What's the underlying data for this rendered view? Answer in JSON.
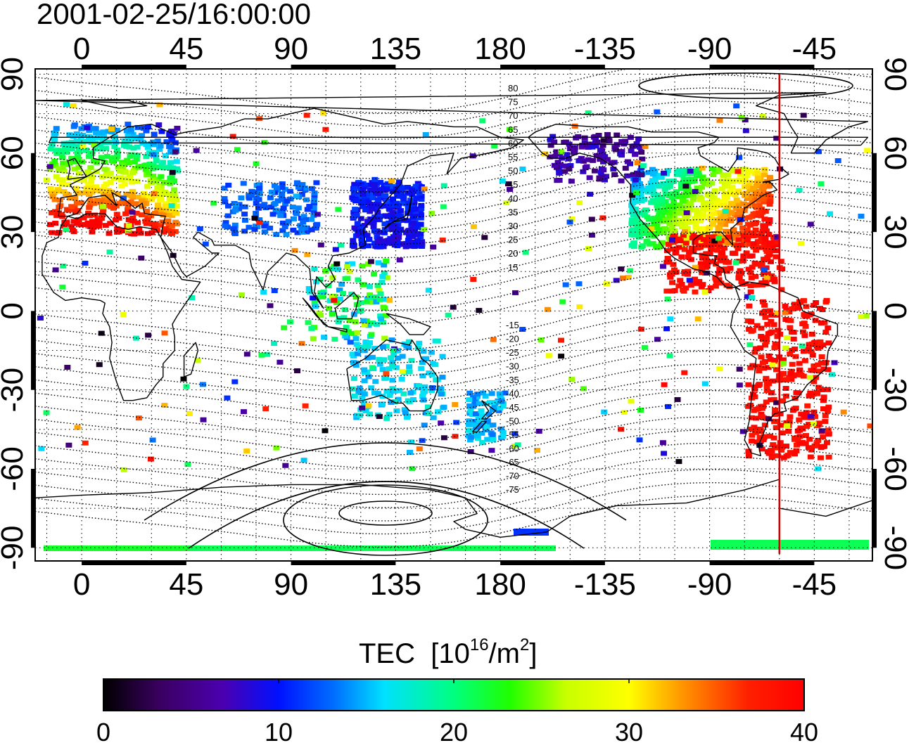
{
  "title": "2001-02-25/16:00:00",
  "map": {
    "top_lon_ticks": [
      "0",
      "45",
      "90",
      "135",
      "180",
      "-135",
      "-90",
      "-45"
    ],
    "bottom_lon_ticks": [
      "0",
      "45",
      "90",
      "135",
      "180",
      "-135",
      "-90",
      "-45"
    ],
    "left_lat_ticks": [
      "90",
      "60",
      "30",
      "0",
      "-30",
      "-60",
      "-90"
    ],
    "right_lat_ticks": [
      "90",
      "60",
      "30",
      "0",
      "-30",
      "-60",
      "-90"
    ],
    "lon_range": [
      -20,
      340
    ],
    "lat_range": [
      -95,
      92
    ],
    "grid": true,
    "grid_style": "dotted",
    "terminator_line_color": "#d00000",
    "terminator_lon": -60,
    "magnetic_contour_labels_north": [
      "80",
      "75",
      "70",
      "65",
      "60",
      "55",
      "50",
      "45",
      "40",
      "35",
      "30",
      "25",
      "20",
      "15"
    ],
    "magnetic_contour_labels_south": [
      "-15",
      "-20",
      "-25",
      "-30",
      "-35",
      "-40",
      "-45",
      "-50",
      "-55",
      "-60",
      "-65",
      "-70",
      "-75"
    ]
  },
  "colorbar": {
    "title_main": "TEC",
    "title_unit_prefix": "[10",
    "title_unit_exp1": "16",
    "title_unit_mid": "/m",
    "title_unit_exp2": "2",
    "title_unit_suffix": "]",
    "ticks": [
      "0",
      "10",
      "20",
      "30",
      "40"
    ],
    "range": [
      0,
      40
    ],
    "colormap": "jet-like (black-purple-blue-cyan-green-yellow-orange-red)"
  }
}
